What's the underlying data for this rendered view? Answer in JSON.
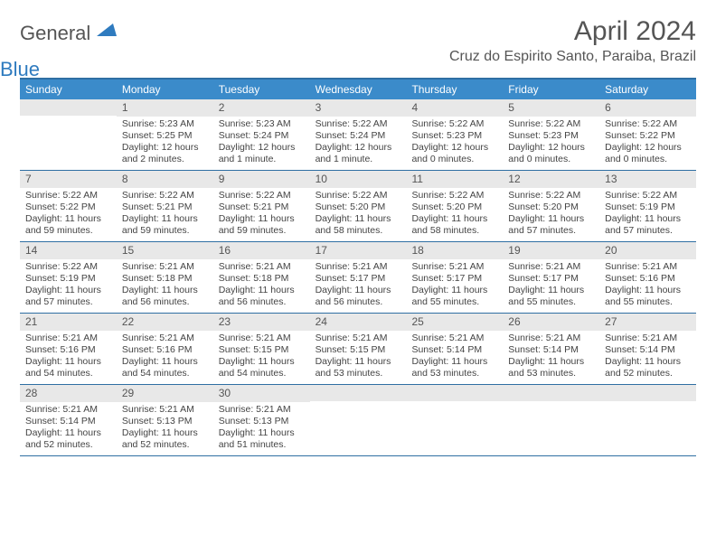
{
  "logo": {
    "text1": "General",
    "text2": "Blue"
  },
  "title": "April 2024",
  "location": "Cruz do Espirito Santo, Paraiba, Brazil",
  "colors": {
    "header_bg": "#3b8bca",
    "header_border": "#2f6fa3",
    "daynum_bg": "#e8e8e8",
    "text": "#444444",
    "title_text": "#555555",
    "logo_blue": "#2f7bbf",
    "page_bg": "#ffffff"
  },
  "typography": {
    "month_title_fontsize": 30,
    "location_fontsize": 16,
    "dow_fontsize": 12,
    "daynum_fontsize": 12,
    "body_fontsize": 10.5,
    "body_lineheight": 1.25
  },
  "days_of_week": [
    "Sunday",
    "Monday",
    "Tuesday",
    "Wednesday",
    "Thursday",
    "Friday",
    "Saturday"
  ],
  "weeks": [
    [
      {
        "n": "",
        "sunrise": "",
        "sunset": "",
        "daylight": ""
      },
      {
        "n": "1",
        "sunrise": "Sunrise: 5:23 AM",
        "sunset": "Sunset: 5:25 PM",
        "daylight": "Daylight: 12 hours and 2 minutes."
      },
      {
        "n": "2",
        "sunrise": "Sunrise: 5:23 AM",
        "sunset": "Sunset: 5:24 PM",
        "daylight": "Daylight: 12 hours and 1 minute."
      },
      {
        "n": "3",
        "sunrise": "Sunrise: 5:22 AM",
        "sunset": "Sunset: 5:24 PM",
        "daylight": "Daylight: 12 hours and 1 minute."
      },
      {
        "n": "4",
        "sunrise": "Sunrise: 5:22 AM",
        "sunset": "Sunset: 5:23 PM",
        "daylight": "Daylight: 12 hours and 0 minutes."
      },
      {
        "n": "5",
        "sunrise": "Sunrise: 5:22 AM",
        "sunset": "Sunset: 5:23 PM",
        "daylight": "Daylight: 12 hours and 0 minutes."
      },
      {
        "n": "6",
        "sunrise": "Sunrise: 5:22 AM",
        "sunset": "Sunset: 5:22 PM",
        "daylight": "Daylight: 12 hours and 0 minutes."
      }
    ],
    [
      {
        "n": "7",
        "sunrise": "Sunrise: 5:22 AM",
        "sunset": "Sunset: 5:22 PM",
        "daylight": "Daylight: 11 hours and 59 minutes."
      },
      {
        "n": "8",
        "sunrise": "Sunrise: 5:22 AM",
        "sunset": "Sunset: 5:21 PM",
        "daylight": "Daylight: 11 hours and 59 minutes."
      },
      {
        "n": "9",
        "sunrise": "Sunrise: 5:22 AM",
        "sunset": "Sunset: 5:21 PM",
        "daylight": "Daylight: 11 hours and 59 minutes."
      },
      {
        "n": "10",
        "sunrise": "Sunrise: 5:22 AM",
        "sunset": "Sunset: 5:20 PM",
        "daylight": "Daylight: 11 hours and 58 minutes."
      },
      {
        "n": "11",
        "sunrise": "Sunrise: 5:22 AM",
        "sunset": "Sunset: 5:20 PM",
        "daylight": "Daylight: 11 hours and 58 minutes."
      },
      {
        "n": "12",
        "sunrise": "Sunrise: 5:22 AM",
        "sunset": "Sunset: 5:20 PM",
        "daylight": "Daylight: 11 hours and 57 minutes."
      },
      {
        "n": "13",
        "sunrise": "Sunrise: 5:22 AM",
        "sunset": "Sunset: 5:19 PM",
        "daylight": "Daylight: 11 hours and 57 minutes."
      }
    ],
    [
      {
        "n": "14",
        "sunrise": "Sunrise: 5:22 AM",
        "sunset": "Sunset: 5:19 PM",
        "daylight": "Daylight: 11 hours and 57 minutes."
      },
      {
        "n": "15",
        "sunrise": "Sunrise: 5:21 AM",
        "sunset": "Sunset: 5:18 PM",
        "daylight": "Daylight: 11 hours and 56 minutes."
      },
      {
        "n": "16",
        "sunrise": "Sunrise: 5:21 AM",
        "sunset": "Sunset: 5:18 PM",
        "daylight": "Daylight: 11 hours and 56 minutes."
      },
      {
        "n": "17",
        "sunrise": "Sunrise: 5:21 AM",
        "sunset": "Sunset: 5:17 PM",
        "daylight": "Daylight: 11 hours and 56 minutes."
      },
      {
        "n": "18",
        "sunrise": "Sunrise: 5:21 AM",
        "sunset": "Sunset: 5:17 PM",
        "daylight": "Daylight: 11 hours and 55 minutes."
      },
      {
        "n": "19",
        "sunrise": "Sunrise: 5:21 AM",
        "sunset": "Sunset: 5:17 PM",
        "daylight": "Daylight: 11 hours and 55 minutes."
      },
      {
        "n": "20",
        "sunrise": "Sunrise: 5:21 AM",
        "sunset": "Sunset: 5:16 PM",
        "daylight": "Daylight: 11 hours and 55 minutes."
      }
    ],
    [
      {
        "n": "21",
        "sunrise": "Sunrise: 5:21 AM",
        "sunset": "Sunset: 5:16 PM",
        "daylight": "Daylight: 11 hours and 54 minutes."
      },
      {
        "n": "22",
        "sunrise": "Sunrise: 5:21 AM",
        "sunset": "Sunset: 5:16 PM",
        "daylight": "Daylight: 11 hours and 54 minutes."
      },
      {
        "n": "23",
        "sunrise": "Sunrise: 5:21 AM",
        "sunset": "Sunset: 5:15 PM",
        "daylight": "Daylight: 11 hours and 54 minutes."
      },
      {
        "n": "24",
        "sunrise": "Sunrise: 5:21 AM",
        "sunset": "Sunset: 5:15 PM",
        "daylight": "Daylight: 11 hours and 53 minutes."
      },
      {
        "n": "25",
        "sunrise": "Sunrise: 5:21 AM",
        "sunset": "Sunset: 5:14 PM",
        "daylight": "Daylight: 11 hours and 53 minutes."
      },
      {
        "n": "26",
        "sunrise": "Sunrise: 5:21 AM",
        "sunset": "Sunset: 5:14 PM",
        "daylight": "Daylight: 11 hours and 53 minutes."
      },
      {
        "n": "27",
        "sunrise": "Sunrise: 5:21 AM",
        "sunset": "Sunset: 5:14 PM",
        "daylight": "Daylight: 11 hours and 52 minutes."
      }
    ],
    [
      {
        "n": "28",
        "sunrise": "Sunrise: 5:21 AM",
        "sunset": "Sunset: 5:14 PM",
        "daylight": "Daylight: 11 hours and 52 minutes."
      },
      {
        "n": "29",
        "sunrise": "Sunrise: 5:21 AM",
        "sunset": "Sunset: 5:13 PM",
        "daylight": "Daylight: 11 hours and 52 minutes."
      },
      {
        "n": "30",
        "sunrise": "Sunrise: 5:21 AM",
        "sunset": "Sunset: 5:13 PM",
        "daylight": "Daylight: 11 hours and 51 minutes."
      },
      {
        "n": "",
        "sunrise": "",
        "sunset": "",
        "daylight": ""
      },
      {
        "n": "",
        "sunrise": "",
        "sunset": "",
        "daylight": ""
      },
      {
        "n": "",
        "sunrise": "",
        "sunset": "",
        "daylight": ""
      },
      {
        "n": "",
        "sunrise": "",
        "sunset": "",
        "daylight": ""
      }
    ]
  ]
}
